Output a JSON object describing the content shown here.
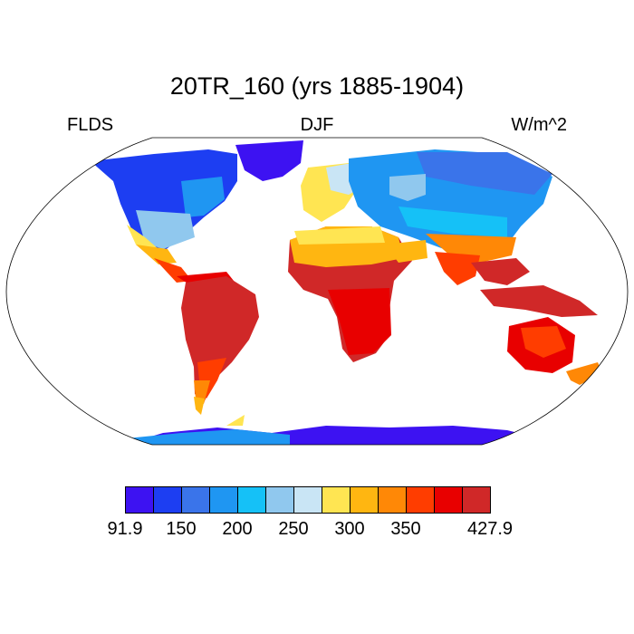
{
  "title": "20TR_160 (yrs 1885-1904)",
  "left_label": "FLDS",
  "center_label": "DJF",
  "right_label": "W/m^2",
  "colorbar": {
    "colors": [
      "#3d12f2",
      "#1d3ef2",
      "#3a74ea",
      "#1f96f2",
      "#15c1f7",
      "#90c8ee",
      "#c9e5f5",
      "#ffe552",
      "#ffb611",
      "#ff8806",
      "#ff3d00",
      "#e80000",
      "#d02828"
    ],
    "tick_labels": [
      "91.9",
      "150",
      "200",
      "250",
      "300",
      "350",
      "427.9"
    ],
    "min": "91.9",
    "max": "427.9"
  },
  "map": {
    "projection": "Robinson",
    "ocean_color": "#ffffff",
    "outline_color": "#000000"
  }
}
